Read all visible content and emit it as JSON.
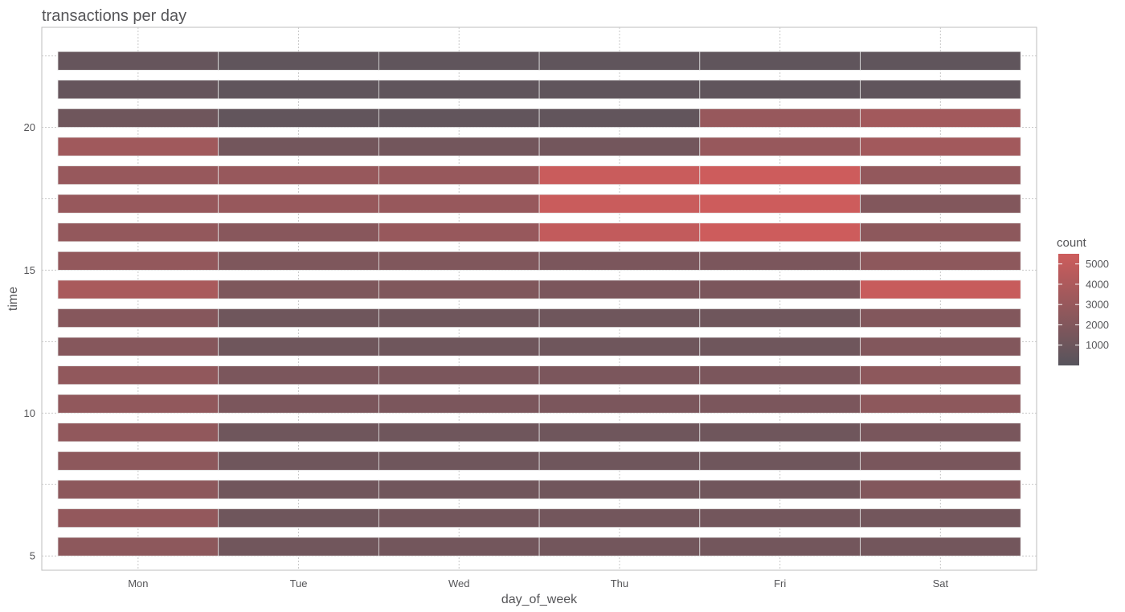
{
  "chart_data": {
    "type": "heatmap",
    "title": "transactions per day",
    "xlabel": "day_of_week",
    "ylabel": "time",
    "categories": [
      "Mon",
      "Tue",
      "Wed",
      "Thu",
      "Fri",
      "Sat"
    ],
    "y_ticks": [
      5,
      10,
      15,
      20
    ],
    "ylim": [
      4.5,
      23.5
    ],
    "grid": true,
    "legend": {
      "title": "count",
      "position": "right",
      "ticks": [
        1000,
        2000,
        3000,
        4000,
        5000
      ],
      "range": [
        0,
        5500
      ],
      "low_color": "#57545C",
      "high_color": "#CD5C5C"
    },
    "hours": [
      6,
      7,
      8,
      9,
      10,
      11,
      12,
      13,
      14,
      15,
      16,
      17,
      18,
      19,
      20,
      21,
      22,
      23
    ],
    "hour_rows": {
      "6": [
        2500,
        1200,
        1300,
        1300,
        1300,
        1300
      ],
      "7": [
        2800,
        1100,
        1300,
        1300,
        1300,
        1300
      ],
      "8": [
        2500,
        1200,
        1200,
        1200,
        1200,
        2000
      ],
      "9": [
        2500,
        1100,
        1100,
        1100,
        1100,
        1600
      ],
      "10": [
        2700,
        1100,
        1100,
        1100,
        1100,
        1600
      ],
      "11": [
        2700,
        1700,
        1700,
        1700,
        1700,
        2500
      ],
      "12": [
        2700,
        1700,
        1700,
        1700,
        1700,
        2500
      ],
      "13": [
        2200,
        1100,
        1100,
        1100,
        1100,
        2000
      ],
      "14": [
        2200,
        1100,
        1100,
        1100,
        1100,
        2000
      ],
      "15": [
        3800,
        1800,
        1900,
        1700,
        1700,
        5200
      ],
      "16": [
        2800,
        1800,
        1900,
        1700,
        1700,
        2500
      ],
      "17": [
        2800,
        2300,
        3000,
        5000,
        5500,
        2500
      ],
      "18": [
        3000,
        3000,
        3000,
        5300,
        5500,
        2000
      ],
      "19": [
        3000,
        3000,
        3000,
        5300,
        5500,
        2800
      ],
      "20": [
        3400,
        1300,
        1300,
        1300,
        3000,
        3500
      ],
      "21": [
        1100,
        500,
        500,
        500,
        3000,
        3500
      ],
      "22": [
        700,
        400,
        400,
        400,
        400,
        400
      ],
      "23": [
        700,
        400,
        400,
        400,
        400,
        400
      ]
    }
  }
}
